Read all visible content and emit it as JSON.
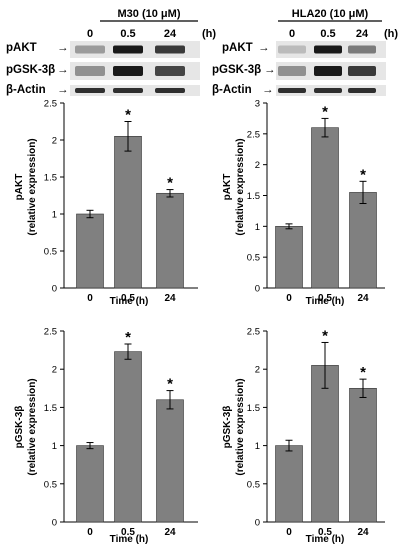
{
  "blots": [
    {
      "treatment": "M30 (10 μM)",
      "unit": "(h)",
      "lanes": [
        "0",
        "0.5",
        "24"
      ],
      "rows": [
        {
          "label": "pAKT",
          "intensity": [
            0.35,
            0.95,
            0.8
          ]
        },
        {
          "label": "pGSK-3β",
          "intensity": [
            0.4,
            0.95,
            0.75
          ]
        },
        {
          "label": "β-Actin",
          "intensity": [
            0.85,
            0.85,
            0.85
          ]
        }
      ]
    },
    {
      "treatment": "HLA20 (10 μM)",
      "unit": "(h)",
      "lanes": [
        "0",
        "0.5",
        "24"
      ],
      "rows": [
        {
          "label": "pAKT",
          "intensity": [
            0.2,
            0.95,
            0.5
          ]
        },
        {
          "label": "pGSK-3β",
          "intensity": [
            0.4,
            0.95,
            0.8
          ]
        },
        {
          "label": "β-Actin",
          "intensity": [
            0.85,
            0.85,
            0.85
          ]
        }
      ]
    }
  ],
  "chart_data": [
    {
      "type": "bar",
      "categories": [
        "0",
        "0.5",
        "24"
      ],
      "values": [
        1.0,
        2.05,
        1.28
      ],
      "errors": [
        0.05,
        0.2,
        0.05
      ],
      "significance": [
        "",
        "*",
        "*"
      ],
      "ylim": [
        0,
        2.5
      ],
      "yticks": [
        "0",
        "0.5",
        "1",
        "1.5",
        "2",
        "2.5"
      ],
      "ylabel": [
        "pAKT",
        "(relative expression)"
      ],
      "xlabel": "Time (h)"
    },
    {
      "type": "bar",
      "categories": [
        "0",
        "0.5",
        "24"
      ],
      "values": [
        1.0,
        2.6,
        1.55
      ],
      "errors": [
        0.04,
        0.15,
        0.18
      ],
      "significance": [
        "",
        "*",
        "*"
      ],
      "ylim": [
        0,
        3
      ],
      "yticks": [
        "0",
        "0.5",
        "1",
        "1.5",
        "2",
        "2.5",
        "3"
      ],
      "ylabel": [
        "pAKT",
        "(relative expression)"
      ],
      "xlabel": "Time (h)"
    },
    {
      "type": "bar",
      "categories": [
        "0",
        "0.5",
        "24"
      ],
      "values": [
        1.0,
        2.23,
        1.6
      ],
      "errors": [
        0.04,
        0.1,
        0.12
      ],
      "significance": [
        "",
        "*",
        "*"
      ],
      "ylim": [
        0,
        2.5
      ],
      "yticks": [
        "0",
        "0.5",
        "1",
        "1.5",
        "2",
        "2.5"
      ],
      "ylabel": [
        "pGSK-3β",
        "(relative expression)"
      ],
      "xlabel": "Time (h)"
    },
    {
      "type": "bar",
      "categories": [
        "0",
        "0.5",
        "24"
      ],
      "values": [
        1.0,
        2.05,
        1.75
      ],
      "errors": [
        0.07,
        0.3,
        0.12
      ],
      "significance": [
        "",
        "*",
        "*"
      ],
      "ylim": [
        0,
        2.5
      ],
      "yticks": [
        "0",
        "0.5",
        "1",
        "1.5",
        "2",
        "2.5"
      ],
      "ylabel": [
        "pGSK-3β",
        "(relative expression)"
      ],
      "xlabel": "Time (h)"
    }
  ]
}
